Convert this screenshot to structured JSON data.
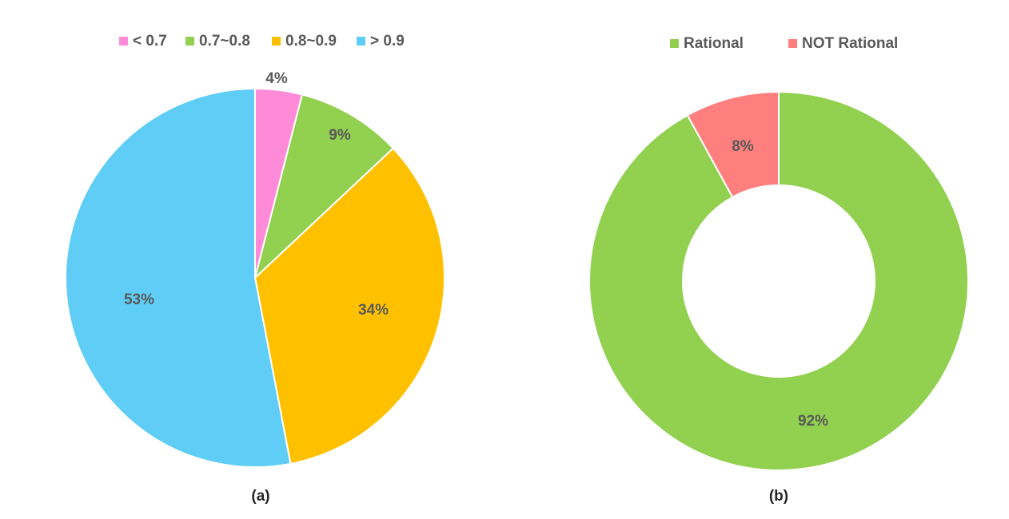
{
  "chart_data": [
    {
      "type": "pie",
      "caption": "(a)",
      "legend_position": "top",
      "categories": [
        "< 0.7",
        "0.7~0.8",
        "0.8~0.9",
        "> 0.9"
      ],
      "values": [
        4,
        9,
        34,
        53
      ],
      "data_labels": [
        "4%",
        "9%",
        "34%",
        "53%"
      ],
      "colors": [
        "#ff8ad8",
        "#92d050",
        "#ffc000",
        "#5fcdf5"
      ]
    },
    {
      "type": "doughnut",
      "caption": "(b)",
      "legend_position": "top",
      "categories": [
        "Rational",
        "NOT Rational"
      ],
      "values": [
        92,
        8
      ],
      "data_labels": [
        "92%",
        "8%"
      ],
      "colors": [
        "#92d050",
        "#ff7f7f"
      ]
    }
  ]
}
